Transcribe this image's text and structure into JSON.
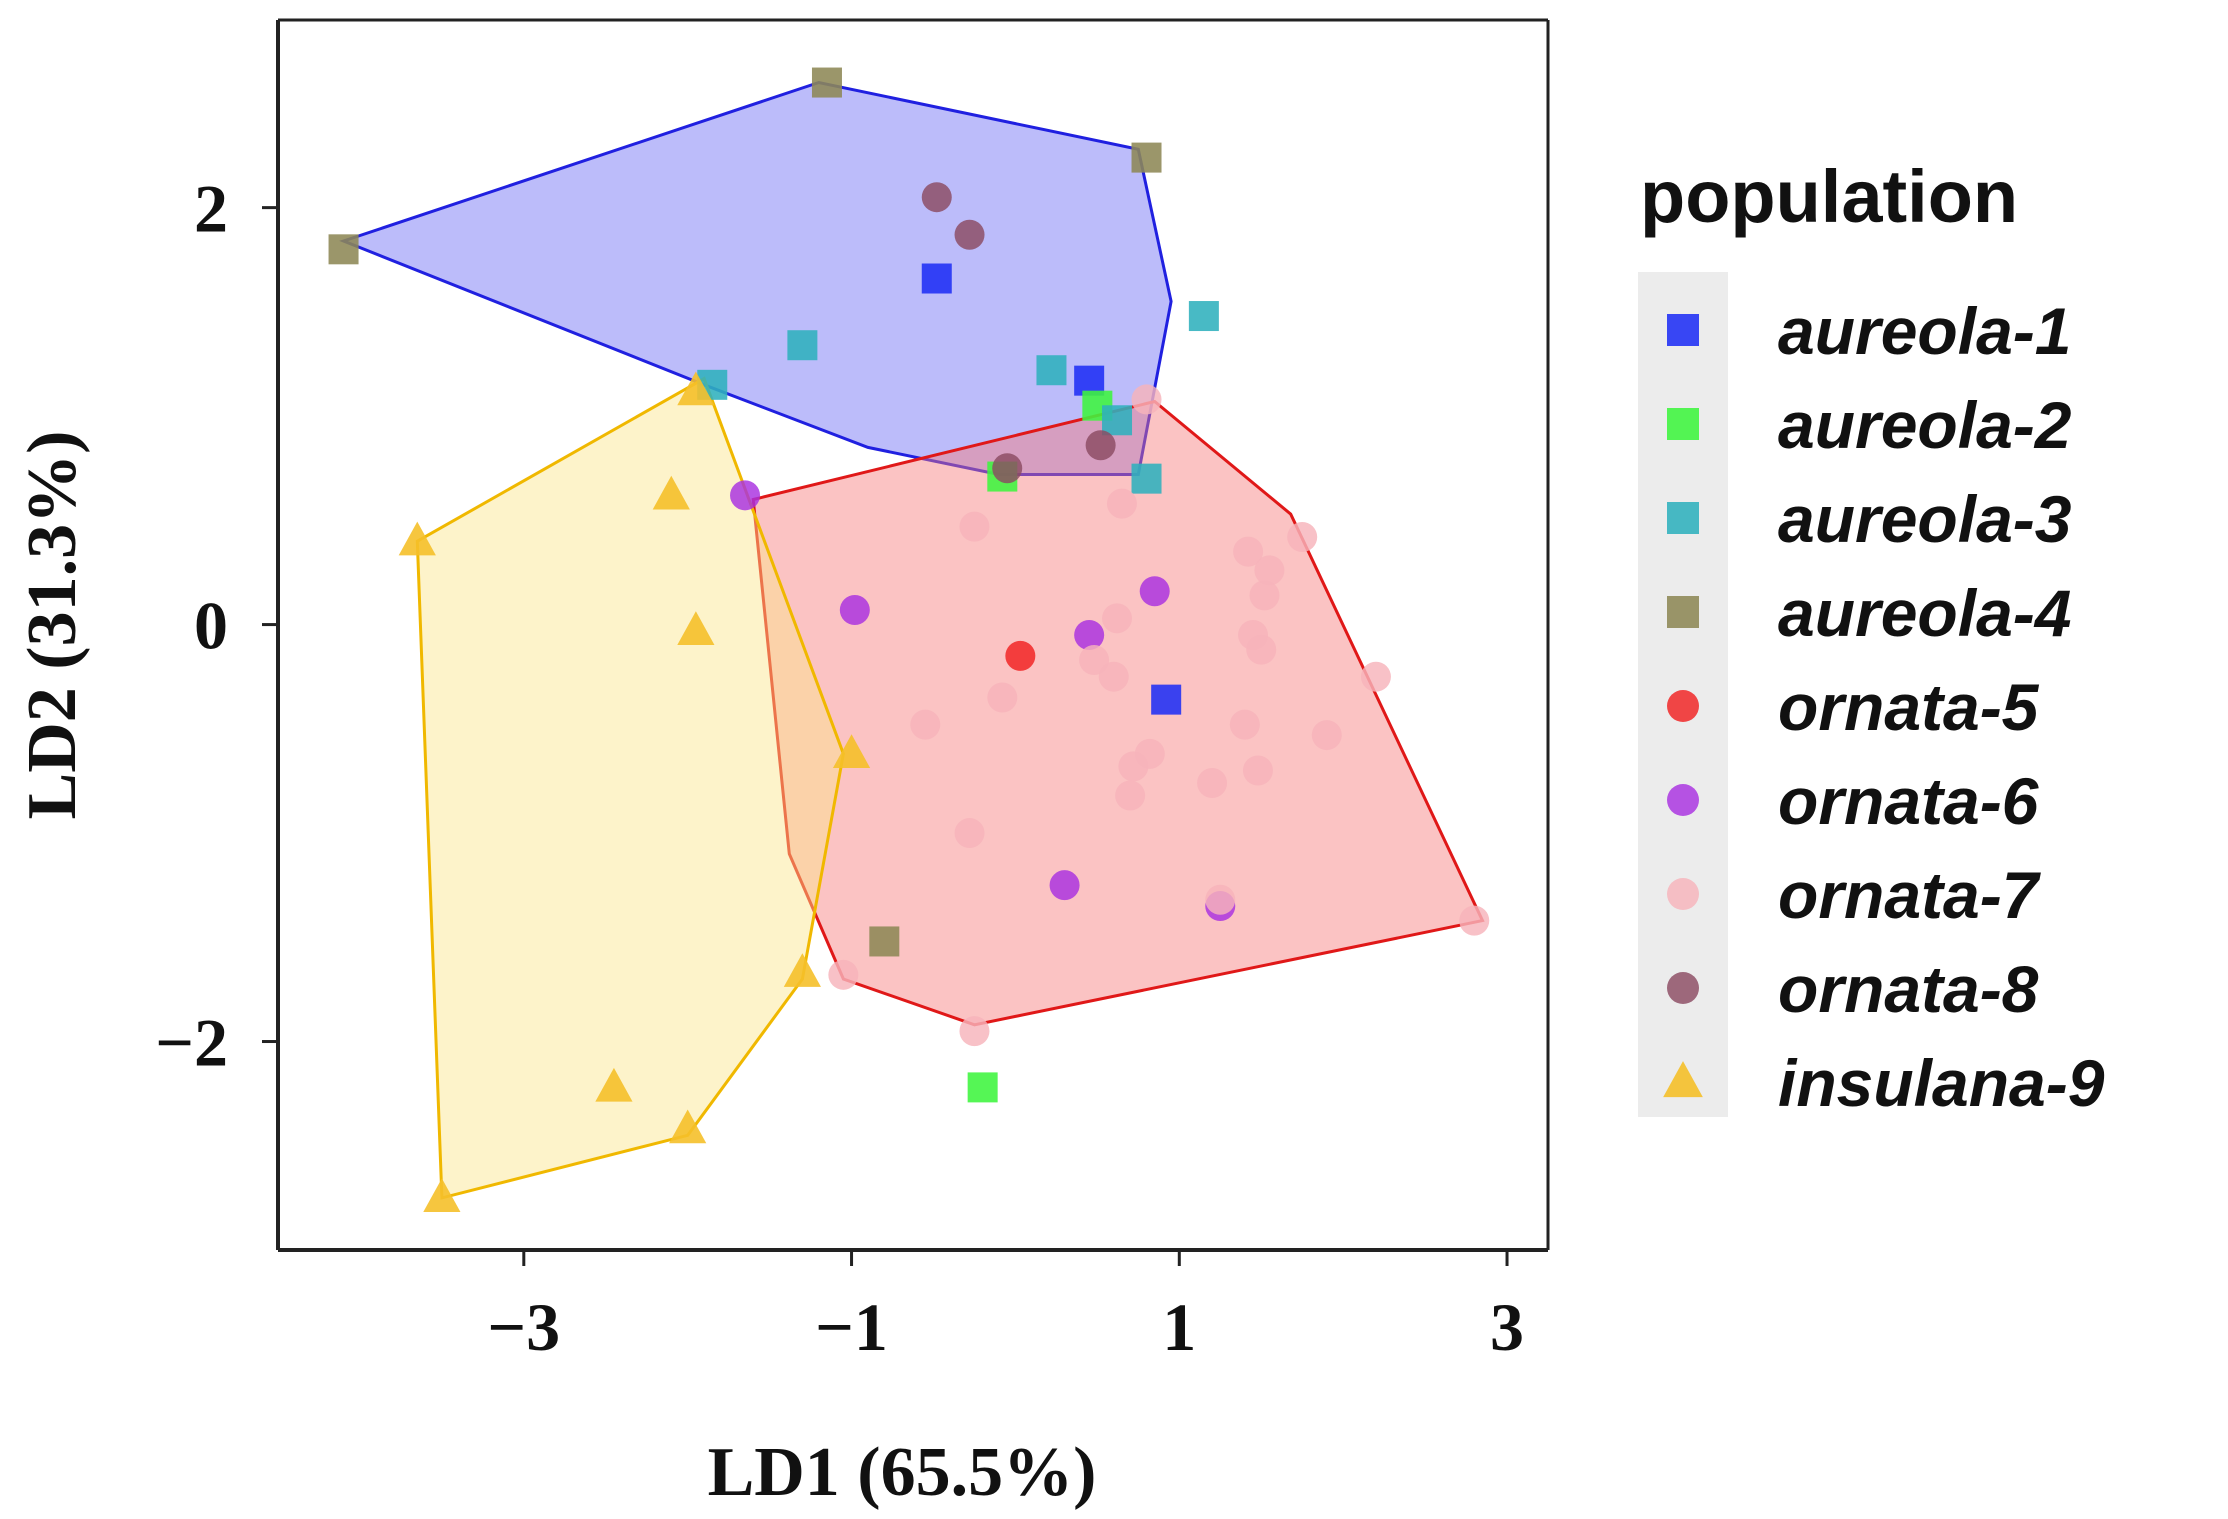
{
  "chart_data": {
    "type": "scatter",
    "title": "",
    "xlabel": "LD1 (65.5%)",
    "ylabel": "LD2 (31.3%)",
    "xlim": [
      -4.5,
      3.25
    ],
    "ylim": [
      -3.0,
      2.9
    ],
    "xticks": [
      -3,
      -1,
      1,
      3
    ],
    "xtick_labels": [
      "−3",
      "−1",
      "1",
      "3"
    ],
    "yticks": [
      -2,
      0,
      2
    ],
    "ytick_labels": [
      "−2",
      "0",
      "2"
    ],
    "grid": false,
    "legend": {
      "title": "population",
      "position": "right"
    },
    "series": [
      {
        "name": "aureola-1",
        "marker": "square",
        "color": "#1f2ff5",
        "points": [
          [
            -0.48,
            1.66
          ],
          [
            0.45,
            1.17
          ],
          [
            0.92,
            -0.36
          ]
        ]
      },
      {
        "name": "aureola-2",
        "marker": "square",
        "color": "#3df53d",
        "points": [
          [
            0.5,
            1.05
          ],
          [
            -0.08,
            0.71
          ],
          [
            -0.2,
            -2.22
          ]
        ]
      },
      {
        "name": "aureola-3",
        "marker": "square",
        "color": "#2fb1bd",
        "points": [
          [
            -1.3,
            1.34
          ],
          [
            0.22,
            1.22
          ],
          [
            0.62,
            0.98
          ],
          [
            1.15,
            1.48
          ],
          [
            -1.85,
            1.15
          ],
          [
            0.8,
            0.7
          ]
        ]
      },
      {
        "name": "aureola-4",
        "marker": "square",
        "color": "#8d8755",
        "points": [
          [
            -4.1,
            1.8
          ],
          [
            -1.15,
            2.6
          ],
          [
            0.8,
            2.24
          ],
          [
            -0.8,
            -1.52
          ]
        ]
      },
      {
        "name": "ornata-5",
        "marker": "circle",
        "color": "#f02020",
        "points": [
          [
            0.03,
            -0.15
          ]
        ]
      },
      {
        "name": "ornata-6",
        "marker": "circle",
        "color": "#a830e0",
        "points": [
          [
            -1.65,
            0.62
          ],
          [
            -0.98,
            0.07
          ],
          [
            0.45,
            -0.05
          ],
          [
            0.85,
            0.16
          ],
          [
            0.3,
            -1.25
          ],
          [
            1.25,
            -1.35
          ]
        ]
      },
      {
        "name": "ornata-7",
        "marker": "circle",
        "color": "#f7b3bb",
        "points": [
          [
            -0.25,
            0.47
          ],
          [
            0.65,
            0.58
          ],
          [
            1.42,
            0.35
          ],
          [
            1.75,
            0.42
          ],
          [
            1.52,
            0.14
          ],
          [
            1.55,
            0.26
          ],
          [
            0.62,
            0.03
          ],
          [
            1.5,
            -0.12
          ],
          [
            1.45,
            -0.05
          ],
          [
            2.2,
            -0.25
          ],
          [
            0.48,
            -0.17
          ],
          [
            0.6,
            -0.25
          ],
          [
            -0.55,
            -0.48
          ],
          [
            -0.08,
            -0.35
          ],
          [
            1.4,
            -0.48
          ],
          [
            1.9,
            -0.53
          ],
          [
            0.82,
            -0.62
          ],
          [
            0.72,
            -0.68
          ],
          [
            1.2,
            -0.76
          ],
          [
            1.48,
            -0.7
          ],
          [
            0.7,
            -0.82
          ],
          [
            -0.28,
            -1.0
          ],
          [
            1.25,
            -1.32
          ],
          [
            2.8,
            -1.42
          ],
          [
            -0.25,
            -1.95
          ],
          [
            -1.05,
            -1.68
          ],
          [
            0.8,
            1.08
          ]
        ]
      },
      {
        "name": "ornata-8",
        "marker": "circle",
        "color": "#8b4a62",
        "points": [
          [
            -0.48,
            2.05
          ],
          [
            -0.28,
            1.87
          ],
          [
            -0.05,
            0.75
          ],
          [
            0.52,
            0.86
          ]
        ]
      },
      {
        "name": "insulana-9",
        "marker": "triangle",
        "color": "#f5c02a",
        "points": [
          [
            -3.65,
            0.4
          ],
          [
            -2.1,
            0.62
          ],
          [
            -1.95,
            -0.03
          ],
          [
            -1.0,
            -0.62
          ],
          [
            -1.3,
            -1.67
          ],
          [
            -2.45,
            -2.22
          ],
          [
            -2.0,
            -2.42
          ],
          [
            -3.5,
            -2.75
          ],
          [
            -1.95,
            1.12
          ]
        ]
      }
    ],
    "hulls": [
      {
        "group": "aureola",
        "fill": "#6b6bf5",
        "stroke": "#2020e0",
        "points": [
          [
            -4.1,
            1.84
          ],
          [
            -1.2,
            2.6
          ],
          [
            0.75,
            2.28
          ],
          [
            0.95,
            1.55
          ],
          [
            0.75,
            0.72
          ],
          [
            -0.1,
            0.72
          ],
          [
            -0.9,
            0.85
          ],
          [
            -1.9,
            1.15
          ]
        ]
      },
      {
        "group": "ornata",
        "fill": "#f77a7a",
        "stroke": "#e01818",
        "points": [
          [
            -1.6,
            0.6
          ],
          [
            0.85,
            1.07
          ],
          [
            1.68,
            0.53
          ],
          [
            2.85,
            -1.42
          ],
          [
            -0.25,
            -1.92
          ],
          [
            -1.05,
            -1.7
          ],
          [
            -1.38,
            -1.1
          ]
        ]
      },
      {
        "group": "insulana",
        "fill": "#fbe48a",
        "stroke": "#f0b800",
        "points": [
          [
            -3.65,
            0.4
          ],
          [
            -1.9,
            1.18
          ],
          [
            -1.05,
            -0.62
          ],
          [
            -1.3,
            -1.7
          ],
          [
            -2.0,
            -2.45
          ],
          [
            -3.5,
            -2.75
          ]
        ]
      }
    ]
  }
}
